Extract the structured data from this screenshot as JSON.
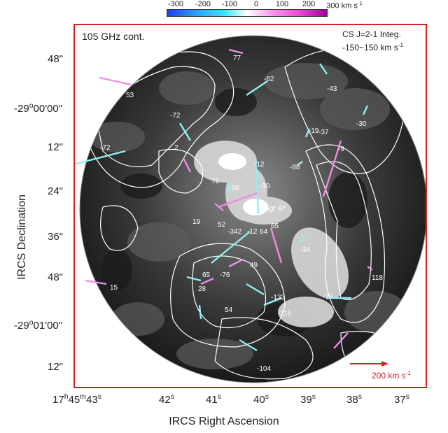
{
  "colorbar": {
    "ticks": [
      "-300",
      "-200",
      "-100",
      "0",
      "100",
      "200",
      "300 km s"
    ],
    "unit_suffix": "-1"
  },
  "panel": {
    "left_label": "105 GHz cont.",
    "right_label_line1": "CS J=2-1 Integ.",
    "right_label_line2": "-150~150 km s",
    "right_label_sup": "-1"
  },
  "y_axis": {
    "label": "IRCS Declination",
    "ticks": [
      {
        "text": "48\"",
        "sup": ""
      },
      {
        "text": "-29",
        "sup": "o",
        "rest": "00'00\""
      },
      {
        "text": "12\"",
        "sup": ""
      },
      {
        "text": "24\"",
        "sup": ""
      },
      {
        "text": "36\"",
        "sup": ""
      },
      {
        "text": "48\"",
        "sup": ""
      },
      {
        "text": "-29",
        "sup": "o",
        "rest": "01'00\""
      },
      {
        "text": "12\"",
        "sup": ""
      }
    ]
  },
  "x_axis": {
    "label": "IRCS Right Ascension",
    "first": {
      "h": "17",
      "m": "45",
      "s": "43"
    },
    "ticks": [
      "42",
      "41",
      "40",
      "39",
      "38",
      "37"
    ],
    "sec_sup": "s"
  },
  "scale_bar": {
    "label": "200 km s",
    "sup": "-1",
    "color": "#d42020"
  },
  "source_label": "Sgr A*",
  "velocity_labels": [
    "77",
    "-62",
    "-43",
    "53",
    "-72",
    "-19",
    "-37",
    "-30",
    "-72",
    "2",
    "-9",
    "-88",
    "-12",
    "-28",
    "-30",
    "72",
    "19",
    "52",
    "-342",
    "-12",
    "64",
    "65",
    "-34",
    "49",
    "65",
    "-76",
    "118",
    "15",
    "28",
    "-133",
    "-77",
    "54",
    "-115",
    "-104"
  ],
  "colors": {
    "frame": "#d42020",
    "approaching": "#8ff0f0",
    "receding": "#f08ce8",
    "contour": "#ffffff"
  }
}
